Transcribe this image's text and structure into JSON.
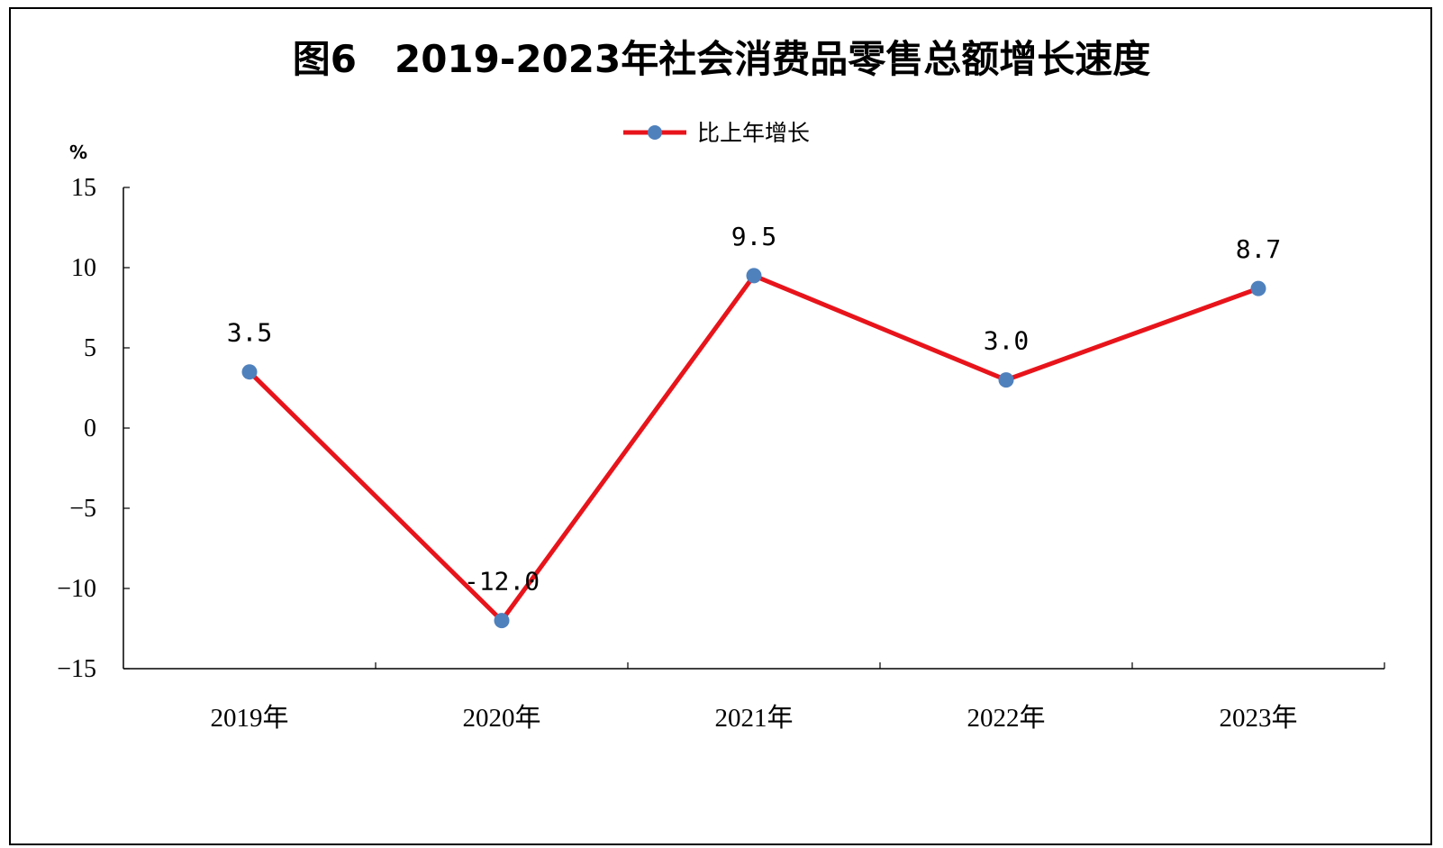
{
  "chart_data": {
    "type": "line",
    "title": "图6　2019-2023年社会消费品零售总额增长速度",
    "ylabel": "%",
    "categories": [
      "2019年",
      "2020年",
      "2021年",
      "2022年",
      "2023年"
    ],
    "series": [
      {
        "name": "比上年增长",
        "values": [
          3.5,
          -12.0,
          9.5,
          3.0,
          8.7
        ]
      }
    ],
    "data_labels": [
      "3.5",
      "-12.0",
      "9.5",
      "3.0",
      "8.7"
    ],
    "ylim": [
      -15,
      15
    ],
    "yticks": [
      "15",
      "10",
      "5",
      "0",
      "−5",
      "−10",
      "−15"
    ],
    "grid": false,
    "legend_position": "top-center",
    "colors": {
      "line": "#e8141b",
      "marker": "#4f81bd",
      "axis": "#000000"
    }
  }
}
